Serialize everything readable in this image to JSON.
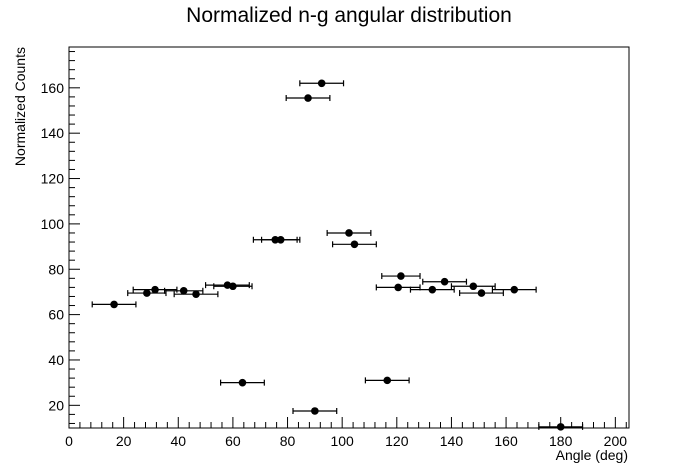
{
  "chart_data": {
    "type": "scatter",
    "title": "Normalized n-g angular distribution",
    "xlabel": "Angle (deg)",
    "ylabel": "Normalized Counts",
    "xlim": [
      0,
      205
    ],
    "ylim": [
      10,
      178
    ],
    "grid": false,
    "legend": "none",
    "marker_color": "#000000",
    "x_ticks": [
      0,
      20,
      40,
      60,
      80,
      100,
      120,
      140,
      160,
      180,
      200
    ],
    "y_ticks": [
      20,
      40,
      60,
      80,
      100,
      120,
      140,
      160
    ],
    "points": [
      {
        "x": 16.5,
        "y": 64.5,
        "xerr": 8
      },
      {
        "x": 28.5,
        "y": 69.5,
        "xerr": 7
      },
      {
        "x": 31.5,
        "y": 71,
        "xerr": 8
      },
      {
        "x": 42,
        "y": 70.5,
        "xerr": 7
      },
      {
        "x": 46.5,
        "y": 69,
        "xerr": 8
      },
      {
        "x": 58,
        "y": 73,
        "xerr": 8
      },
      {
        "x": 60,
        "y": 72.5,
        "xerr": 7
      },
      {
        "x": 63.5,
        "y": 30,
        "xerr": 8
      },
      {
        "x": 75.5,
        "y": 93,
        "xerr": 8
      },
      {
        "x": 77.5,
        "y": 93,
        "xerr": 7
      },
      {
        "x": 87.5,
        "y": 155.5,
        "xerr": 8
      },
      {
        "x": 90,
        "y": 17.5,
        "xerr": 8
      },
      {
        "x": 92.5,
        "y": 162,
        "xerr": 8
      },
      {
        "x": 102.5,
        "y": 96,
        "xerr": 8
      },
      {
        "x": 104.5,
        "y": 91,
        "xerr": 8
      },
      {
        "x": 116.5,
        "y": 31,
        "xerr": 8
      },
      {
        "x": 120.5,
        "y": 72,
        "xerr": 8
      },
      {
        "x": 121.5,
        "y": 77,
        "xerr": 7
      },
      {
        "x": 133,
        "y": 71,
        "xerr": 8
      },
      {
        "x": 137.5,
        "y": 74.5,
        "xerr": 8
      },
      {
        "x": 148,
        "y": 72.5,
        "xerr": 8
      },
      {
        "x": 151,
        "y": 69.5,
        "xerr": 8
      },
      {
        "x": 163,
        "y": 71,
        "xerr": 8
      },
      {
        "x": 180,
        "y": 10.5,
        "xerr": 8
      }
    ]
  }
}
